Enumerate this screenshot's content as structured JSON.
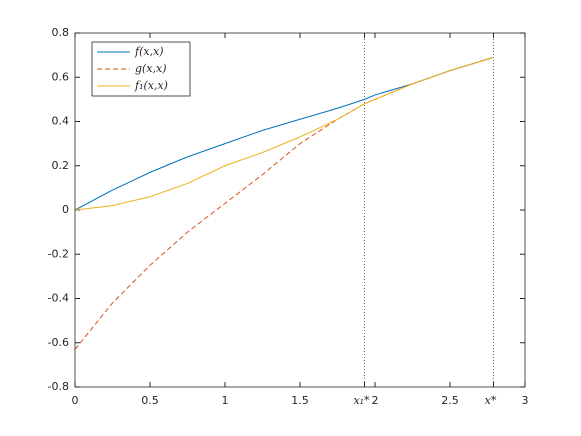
{
  "chart_data": {
    "type": "line",
    "x": [
      0,
      0.25,
      0.5,
      0.75,
      1,
      1.25,
      1.5,
      1.75,
      1.93,
      2,
      2.25,
      2.5,
      2.79
    ],
    "series": [
      {
        "name": "f(x,x)",
        "color": "#0072bd",
        "dash": "solid",
        "values": [
          0,
          0.09,
          0.17,
          0.24,
          0.3,
          0.36,
          0.41,
          0.46,
          0.5,
          0.52,
          0.57,
          0.63,
          0.69
        ]
      },
      {
        "name": "g(x,x)",
        "color": "#d95319",
        "dash": "dashed",
        "values": [
          -0.63,
          -0.42,
          -0.25,
          -0.1,
          0.03,
          0.16,
          0.3,
          0.41,
          0.48,
          0.5,
          0.57,
          0.63,
          0.69
        ]
      },
      {
        "name": "f₁(x,x)",
        "color": "#edb120",
        "dash": "solid",
        "values": [
          0,
          0.02,
          0.06,
          0.12,
          0.2,
          0.26,
          0.33,
          0.41,
          0.48,
          0.5,
          0.57,
          0.63,
          0.69
        ]
      }
    ],
    "xlim": [
      0,
      3
    ],
    "ylim": [
      -0.8,
      0.8
    ],
    "xticks": [
      0,
      0.5,
      1,
      1.5,
      {
        "value": 1.93,
        "label": "x₁*"
      },
      2,
      2.5,
      {
        "value": 2.79,
        "label": "x*"
      },
      3
    ],
    "yticks": [
      -0.8,
      -0.6,
      -0.4,
      -0.2,
      0,
      0.2,
      0.4,
      0.6,
      0.8
    ],
    "vlines": [
      1.93,
      2.79
    ],
    "legend": "upper-left",
    "grid": false
  }
}
